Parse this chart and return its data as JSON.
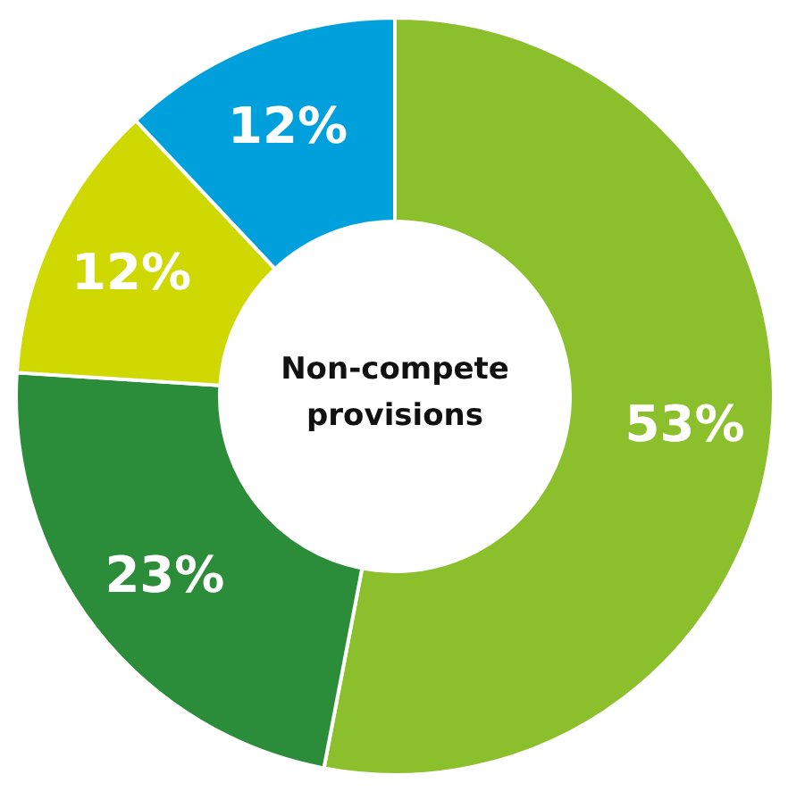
{
  "chart_data": {
    "type": "donut",
    "title": "Non-compete provisions",
    "categories": [
      null,
      null,
      null,
      null
    ],
    "values": [
      53,
      23,
      12,
      12
    ],
    "colors": [
      "#8bbf2b",
      "#2b8c3a",
      "#cfd800",
      "#00a0dc"
    ],
    "value_labels": [
      "53%",
      "23%",
      "12%",
      "12%"
    ]
  }
}
